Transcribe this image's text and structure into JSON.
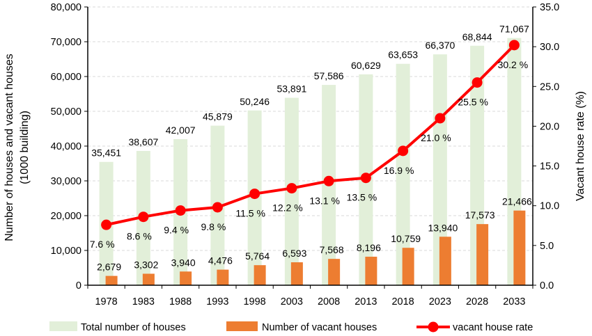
{
  "chart_data": {
    "type": "bar+line",
    "categories": [
      "1978",
      "1983",
      "1988",
      "1993",
      "1998",
      "2003",
      "2008",
      "2013",
      "2018",
      "2023",
      "2028",
      "2033"
    ],
    "series": [
      {
        "name": "Total number of houses",
        "type": "bar",
        "axis": "left",
        "color": "#e2efd9",
        "values": [
          35451,
          38607,
          42007,
          45879,
          50246,
          53891,
          57586,
          60629,
          63653,
          66370,
          68844,
          71067
        ],
        "labels": [
          "35,451",
          "38,607",
          "42,007",
          "45,879",
          "50,246",
          "53,891",
          "57,586",
          "60,629",
          "63,653",
          "66,370",
          "68,844",
          "71,067"
        ]
      },
      {
        "name": "Number of vacant houses",
        "type": "bar",
        "axis": "left",
        "color": "#ed7d31",
        "values": [
          2679,
          3302,
          3940,
          4476,
          5764,
          6593,
          7568,
          8196,
          10759,
          13940,
          17573,
          21466
        ],
        "labels": [
          "2,679",
          "3,302",
          "3,940",
          "4,476",
          "5,764",
          "6,593",
          "7,568",
          "8,196",
          "10,759",
          "13,940",
          "17,573",
          "21,466"
        ]
      },
      {
        "name": "vacant house rate",
        "type": "line",
        "axis": "right",
        "color": "#ff0000",
        "values": [
          7.6,
          8.6,
          9.4,
          9.8,
          11.5,
          12.2,
          13.1,
          13.5,
          16.9,
          21.0,
          25.5,
          30.2
        ],
        "labels": [
          "7.6 %",
          "8.6 %",
          "9.4 %",
          "9.8 %",
          "11.5 %",
          "12.2 %",
          "13.1 %",
          "13.5 %",
          "16.9 %",
          "21.0 %",
          "25.5 %",
          "30.2 %"
        ]
      }
    ],
    "left_axis": {
      "title_lines": [
        "Number of houses and vacant houses",
        "(1000 building)"
      ],
      "min": 0,
      "max": 80000,
      "ticks": [
        0,
        10000,
        20000,
        30000,
        40000,
        50000,
        60000,
        70000,
        80000
      ],
      "tick_labels": [
        "0",
        "10,000",
        "20,000",
        "30,000",
        "40,000",
        "50,000",
        "60,000",
        "70,000",
        "80,000"
      ]
    },
    "right_axis": {
      "title": "Vacant house rate (%)",
      "min": 0,
      "max": 35,
      "ticks": [
        0,
        5,
        10,
        15,
        20,
        25,
        30,
        35
      ],
      "tick_labels": [
        "0.0",
        "5.0",
        "10.0",
        "15.0",
        "20.0",
        "25.0",
        "30.0",
        "35.0"
      ]
    },
    "grid": "horizontal-dashed",
    "legend_position": "bottom"
  }
}
